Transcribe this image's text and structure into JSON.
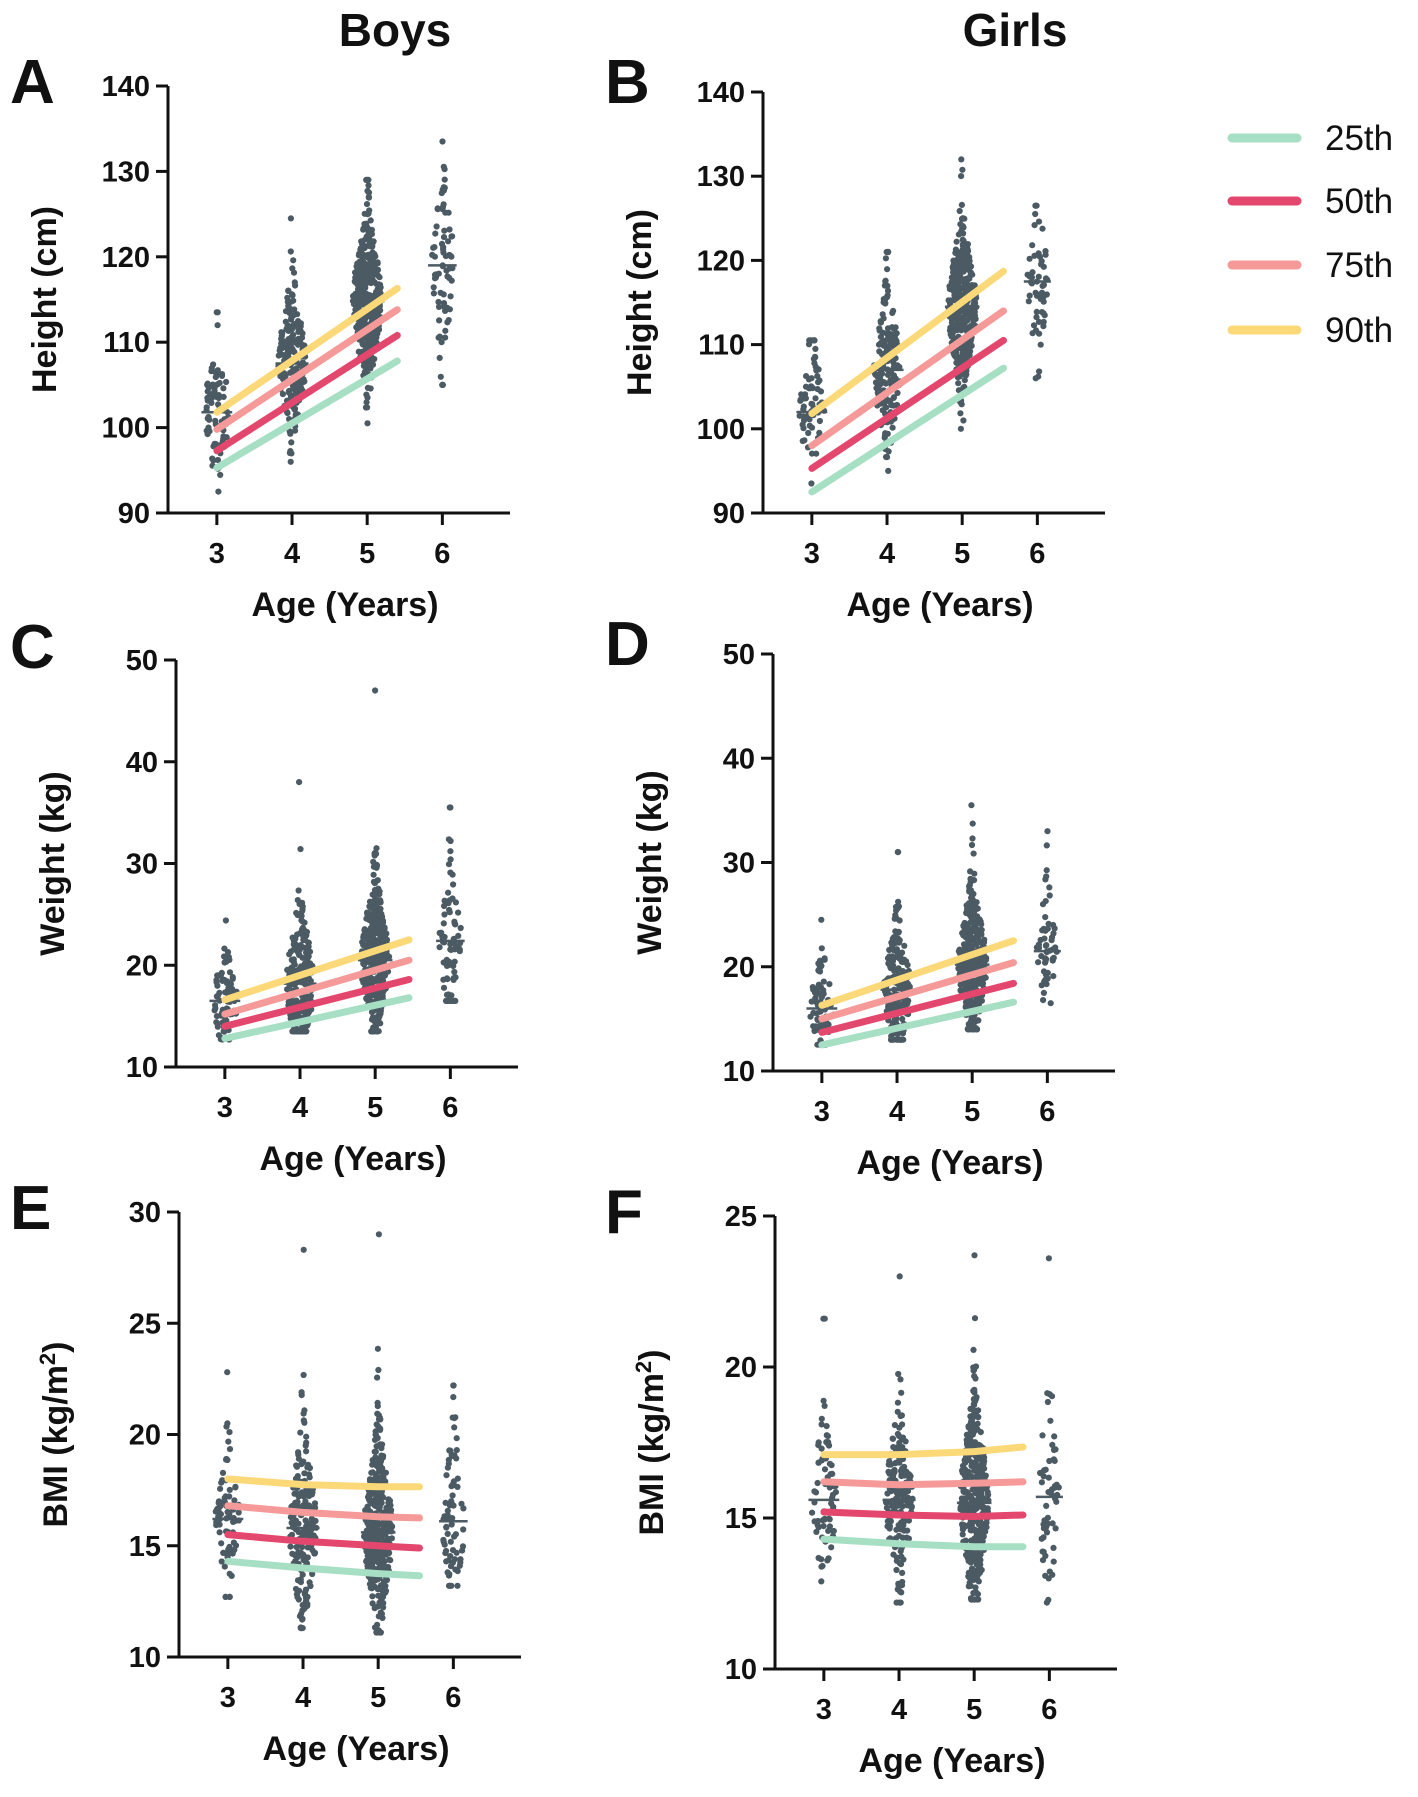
{
  "column_titles": {
    "boys": "Boys",
    "girls": "Girls"
  },
  "legend": {
    "items": [
      {
        "label": "25th",
        "color": "#a6dfc3"
      },
      {
        "label": "50th",
        "color": "#e4476d"
      },
      {
        "label": "75th",
        "color": "#f59a98"
      },
      {
        "label": "90th",
        "color": "#fbd979"
      }
    ]
  },
  "colors": {
    "dots": "#4b5a63",
    "axis": "#111111",
    "median": "#4b5a63"
  },
  "chart_data": [
    {
      "panel": "A",
      "group": "Boys",
      "type": "scatter",
      "title": "A",
      "xlabel": "Age (Years)",
      "ylabel": "Height (cm)",
      "ylim": [
        90,
        140
      ],
      "yticks": [
        90,
        100,
        110,
        120,
        130,
        140
      ],
      "xlim": [
        2.35,
        6.9
      ],
      "xticks": [
        3,
        4,
        5,
        6
      ],
      "groups": [
        {
          "x": 3,
          "n": 80,
          "median": 101.8,
          "sd": 3.9,
          "min": 92.5,
          "max": 113.5,
          "width": 0.33
        },
        {
          "x": 4,
          "n": 200,
          "median": 107.5,
          "sd": 4.5,
          "min": 96,
          "max": 124.5,
          "width": 0.36
        },
        {
          "x": 5,
          "n": 400,
          "median": 114.8,
          "sd": 4.8,
          "min": 100.5,
          "max": 129,
          "width": 0.38
        },
        {
          "x": 6,
          "n": 75,
          "median": 119,
          "sd": 5.2,
          "min": 105,
          "max": 133.5,
          "width": 0.3
        }
      ],
      "percentiles": [
        {
          "name": "25th",
          "x": [
            3,
            5.4
          ],
          "y": [
            95.3,
            107.8
          ]
        },
        {
          "name": "50th",
          "x": [
            3,
            5.4
          ],
          "y": [
            97.3,
            110.8
          ]
        },
        {
          "name": "75th",
          "x": [
            3,
            5.4
          ],
          "y": [
            99.8,
            113.8
          ]
        },
        {
          "name": "90th",
          "x": [
            3,
            5.4
          ],
          "y": [
            101.8,
            116.3
          ]
        }
      ]
    },
    {
      "panel": "B",
      "group": "Girls",
      "type": "scatter",
      "title": "B",
      "xlabel": "Age (Years)",
      "ylabel": "Height (cm)",
      "ylim": [
        90,
        140
      ],
      "yticks": [
        90,
        100,
        110,
        120,
        130,
        140
      ],
      "xlim": [
        2.35,
        6.9
      ],
      "xticks": [
        3,
        4,
        5,
        6
      ],
      "groups": [
        {
          "x": 3,
          "n": 70,
          "median": 102,
          "sd": 3.8,
          "min": 93.5,
          "max": 110.5,
          "width": 0.33
        },
        {
          "x": 4,
          "n": 190,
          "median": 107,
          "sd": 4.5,
          "min": 95,
          "max": 121,
          "width": 0.36
        },
        {
          "x": 5,
          "n": 380,
          "median": 114.5,
          "sd": 4.6,
          "min": 100,
          "max": 132,
          "width": 0.38
        },
        {
          "x": 6,
          "n": 55,
          "median": 117.5,
          "sd": 4.5,
          "min": 106,
          "max": 126.5,
          "width": 0.28
        }
      ],
      "percentiles": [
        {
          "name": "25th",
          "x": [
            3,
            5.55
          ],
          "y": [
            92.5,
            107.2
          ]
        },
        {
          "name": "50th",
          "x": [
            3,
            5.55
          ],
          "y": [
            95.3,
            110.5
          ]
        },
        {
          "name": "75th",
          "x": [
            3,
            5.55
          ],
          "y": [
            98.0,
            114.0
          ]
        },
        {
          "name": "90th",
          "x": [
            3,
            5.55
          ],
          "y": [
            101.8,
            118.7
          ]
        }
      ]
    },
    {
      "panel": "C",
      "group": "Boys",
      "type": "scatter",
      "title": "C",
      "xlabel": "Age (Years)",
      "ylabel": "Weight (kg)",
      "ylim": [
        10,
        50
      ],
      "yticks": [
        10,
        20,
        30,
        40,
        50
      ],
      "xlim": [
        2.35,
        6.9
      ],
      "xticks": [
        3,
        4,
        5,
        6
      ],
      "groups": [
        {
          "x": 3,
          "n": 80,
          "median": 16.5,
          "sd": 2.3,
          "min": 12.7,
          "max": 24.4,
          "width": 0.33
        },
        {
          "x": 4,
          "n": 200,
          "median": 18.2,
          "sd": 3.6,
          "min": 13.5,
          "max": 38,
          "width": 0.36
        },
        {
          "x": 5,
          "n": 400,
          "median": 20.5,
          "sd": 3.6,
          "min": 13.5,
          "max": 47,
          "width": 0.38
        },
        {
          "x": 6,
          "n": 75,
          "median": 22.4,
          "sd": 3.9,
          "min": 16.5,
          "max": 35.5,
          "width": 0.3
        }
      ],
      "percentiles": [
        {
          "name": "25th",
          "x": [
            3,
            5.45
          ],
          "y": [
            12.8,
            16.8
          ]
        },
        {
          "name": "50th",
          "x": [
            3,
            5.45
          ],
          "y": [
            14.0,
            18.6
          ]
        },
        {
          "name": "75th",
          "x": [
            3,
            5.45
          ],
          "y": [
            15.2,
            20.5
          ]
        },
        {
          "name": "90th",
          "x": [
            3,
            5.45
          ],
          "y": [
            16.6,
            22.5
          ]
        }
      ]
    },
    {
      "panel": "D",
      "group": "Girls",
      "type": "scatter",
      "title": "D",
      "xlabel": "Age (Years)",
      "ylabel": "Weight (kg)",
      "ylim": [
        10,
        50
      ],
      "yticks": [
        10,
        20,
        30,
        40,
        50
      ],
      "xlim": [
        2.35,
        6.9
      ],
      "xticks": [
        3,
        4,
        5,
        6
      ],
      "groups": [
        {
          "x": 3,
          "n": 70,
          "median": 16,
          "sd": 2.2,
          "min": 12.5,
          "max": 24.5,
          "width": 0.33
        },
        {
          "x": 4,
          "n": 190,
          "median": 17.8,
          "sd": 3.2,
          "min": 13,
          "max": 31,
          "width": 0.36
        },
        {
          "x": 5,
          "n": 380,
          "median": 20.2,
          "sd": 3.4,
          "min": 14,
          "max": 35.5,
          "width": 0.38
        },
        {
          "x": 6,
          "n": 55,
          "median": 21.5,
          "sd": 3.2,
          "min": 16.5,
          "max": 33,
          "width": 0.28
        }
      ],
      "percentiles": [
        {
          "name": "25th",
          "x": [
            3,
            5.55
          ],
          "y": [
            12.5,
            16.6
          ]
        },
        {
          "name": "50th",
          "x": [
            3,
            5.55
          ],
          "y": [
            13.7,
            18.4
          ]
        },
        {
          "name": "75th",
          "x": [
            3,
            5.55
          ],
          "y": [
            15.0,
            20.4
          ]
        },
        {
          "name": "90th",
          "x": [
            3,
            5.55
          ],
          "y": [
            16.3,
            22.5
          ]
        }
      ]
    },
    {
      "panel": "E",
      "group": "Boys",
      "type": "scatter",
      "title": "E",
      "xlabel": "Age (Years)",
      "ylabel": "BMI (kg/m",
      "ylabel_sup": "2",
      "ylabel_end": ")",
      "ylim": [
        10,
        30
      ],
      "yticks": [
        10,
        15,
        20,
        25,
        30
      ],
      "xlim": [
        2.35,
        6.9
      ],
      "xticks": [
        3,
        4,
        5,
        6
      ],
      "groups": [
        {
          "x": 3,
          "n": 80,
          "median": 16.2,
          "sd": 1.5,
          "min": 12.7,
          "max": 22.8,
          "width": 0.33
        },
        {
          "x": 4,
          "n": 200,
          "median": 15.8,
          "sd": 2.0,
          "min": 11.3,
          "max": 28.3,
          "width": 0.36
        },
        {
          "x": 5,
          "n": 400,
          "median": 15.6,
          "sd": 2.0,
          "min": 11.1,
          "max": 29,
          "width": 0.38
        },
        {
          "x": 6,
          "n": 75,
          "median": 16.1,
          "sd": 2.0,
          "min": 13.2,
          "max": 22.2,
          "width": 0.3
        }
      ],
      "percentiles": [
        {
          "name": "25th",
          "x": [
            3,
            4,
            5,
            5.55
          ],
          "y": [
            14.3,
            14.0,
            13.75,
            13.65
          ]
        },
        {
          "name": "50th",
          "x": [
            3,
            4,
            5,
            5.55
          ],
          "y": [
            15.5,
            15.2,
            15.0,
            14.9
          ]
        },
        {
          "name": "75th",
          "x": [
            3,
            4,
            5,
            5.55
          ],
          "y": [
            16.8,
            16.5,
            16.3,
            16.25
          ]
        },
        {
          "name": "90th",
          "x": [
            3,
            4,
            5,
            5.55
          ],
          "y": [
            18.0,
            17.75,
            17.65,
            17.65
          ]
        }
      ]
    },
    {
      "panel": "F",
      "group": "Girls",
      "type": "scatter",
      "title": "F",
      "xlabel": "Age (Years)",
      "ylabel": "BMI (kg/m",
      "ylabel_sup": "2",
      "ylabel_end": ")",
      "ylim": [
        10,
        25
      ],
      "yticks": [
        10,
        15,
        20,
        25
      ],
      "xlim": [
        2.35,
        6.9
      ],
      "xticks": [
        3,
        4,
        5,
        6
      ],
      "groups": [
        {
          "x": 3,
          "n": 70,
          "median": 15.6,
          "sd": 1.3,
          "min": 12.9,
          "max": 21.6,
          "width": 0.33
        },
        {
          "x": 4,
          "n": 190,
          "median": 15.6,
          "sd": 1.4,
          "min": 12.2,
          "max": 23,
          "width": 0.36
        },
        {
          "x": 5,
          "n": 380,
          "median": 15.5,
          "sd": 1.6,
          "min": 12.3,
          "max": 23.7,
          "width": 0.38
        },
        {
          "x": 6,
          "n": 55,
          "median": 15.7,
          "sd": 1.8,
          "min": 12.2,
          "max": 23.6,
          "width": 0.28
        }
      ],
      "percentiles": [
        {
          "name": "25th",
          "x": [
            3,
            4,
            5,
            5.65
          ],
          "y": [
            14.3,
            14.15,
            14.05,
            14.05
          ]
        },
        {
          "name": "50th",
          "x": [
            3,
            4,
            5,
            5.65
          ],
          "y": [
            15.2,
            15.1,
            15.05,
            15.1
          ]
        },
        {
          "name": "75th",
          "x": [
            3,
            4,
            5,
            5.65
          ],
          "y": [
            16.2,
            16.1,
            16.15,
            16.2
          ]
        },
        {
          "name": "90th",
          "x": [
            3,
            4,
            5,
            5.65
          ],
          "y": [
            17.1,
            17.1,
            17.2,
            17.35
          ]
        }
      ]
    }
  ]
}
